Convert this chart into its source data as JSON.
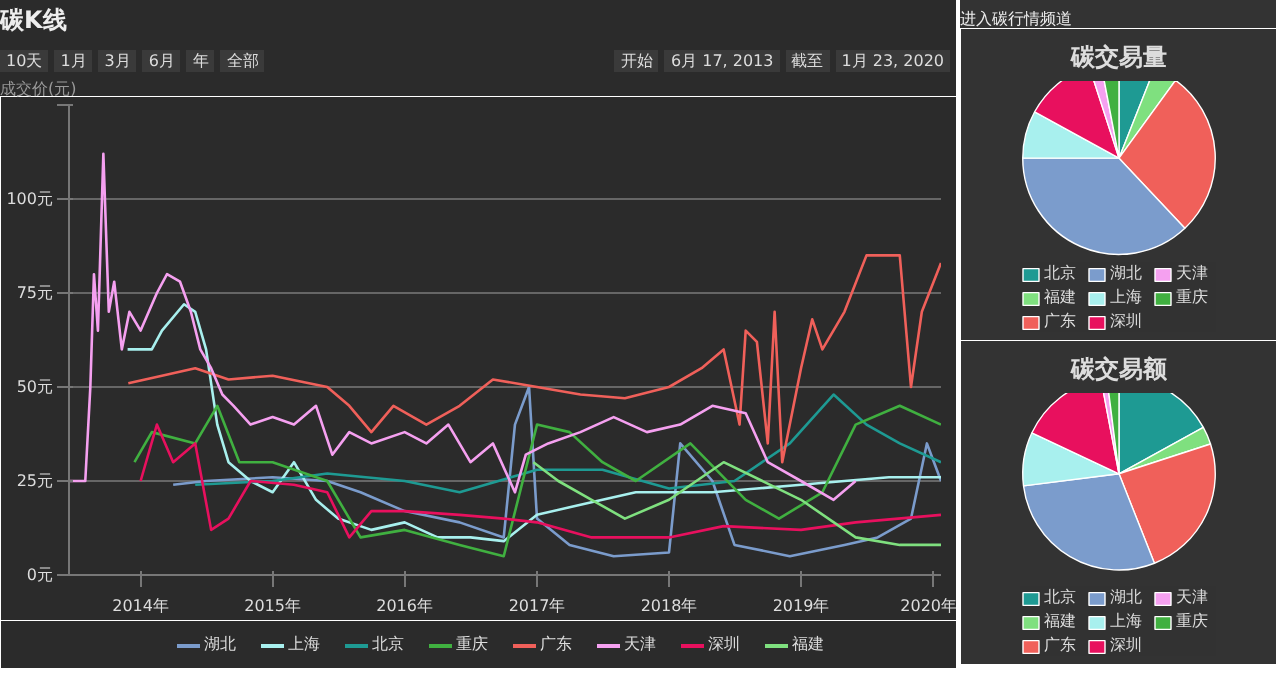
{
  "chart_data": [
    {
      "type": "line",
      "title": "碳K线",
      "ylabel": "成交价(元)",
      "annotations": [
        "10天",
        "1月",
        "3月",
        "6月",
        "年",
        "全部",
        "开始",
        "6月 17, 2013",
        "截至",
        "1月 23, 2020"
      ],
      "xlim": [
        "2013-06-17",
        "2020-01-23"
      ],
      "xticks": [
        {
          "value": "2014-01-01",
          "label": "2014年"
        },
        {
          "value": "2015-01-01",
          "label": "2015年"
        },
        {
          "value": "2016-01-01",
          "label": "2016年"
        },
        {
          "value": "2017-01-01",
          "label": "2017年"
        },
        {
          "value": "2018-01-01",
          "label": "2018年"
        },
        {
          "value": "2019-01-01",
          "label": "2019年"
        },
        {
          "value": "2020-01-01",
          "label": "2020年"
        }
      ],
      "ylim": [
        0,
        125
      ],
      "yticks": [
        {
          "value": 0,
          "label": "0元"
        },
        {
          "value": 25,
          "label": "25元"
        },
        {
          "value": 50,
          "label": "50元"
        },
        {
          "value": 75,
          "label": "75元"
        },
        {
          "value": 100,
          "label": "100元"
        },
        {
          "value": 125,
          "label": null
        }
      ],
      "grid": "y",
      "legend": "bottom",
      "marker": "none",
      "line_style": "solid",
      "series": [
        {
          "name": "湖北",
          "color": "#7b9ccc",
          "x": [
            "2014-04-01",
            "2014-07-01",
            "2015-01-01",
            "2015-06-01",
            "2015-09-01",
            "2016-01-01",
            "2016-06-01",
            "2016-10-01",
            "2016-11-01",
            "2016-12-10",
            "2017-01-01",
            "2017-04-01",
            "2017-08-01",
            "2018-01-01",
            "2018-02-01",
            "2018-05-01",
            "2018-07-01",
            "2018-12-01",
            "2019-05-01",
            "2019-08-01",
            "2019-11-01",
            "2019-12-15",
            "2020-01-23"
          ],
          "values": [
            24,
            25,
            26,
            25,
            22,
            17,
            14,
            10,
            40,
            50,
            15,
            8,
            5,
            6,
            35,
            25,
            8,
            5,
            8,
            10,
            15,
            35,
            25
          ]
        },
        {
          "name": "上海",
          "color": "#a8f0ee",
          "x": [
            "2013-11-26",
            "2014-02-01",
            "2014-03-01",
            "2014-05-01",
            "2014-06-01",
            "2014-07-01",
            "2014-08-01",
            "2014-09-01",
            "2014-11-01",
            "2015-01-01",
            "2015-03-01",
            "2015-05-01",
            "2015-07-01",
            "2015-10-01",
            "2016-01-01",
            "2016-04-01",
            "2016-07-01",
            "2016-10-01",
            "2017-01-01",
            "2017-04-01",
            "2017-07-01",
            "2017-10-01",
            "2018-01-01",
            "2018-05-01",
            "2018-09-01",
            "2019-01-01",
            "2019-05-01",
            "2019-09-01",
            "2020-01-23"
          ],
          "values": [
            60,
            60,
            65,
            72,
            70,
            60,
            40,
            30,
            25,
            22,
            30,
            20,
            15,
            12,
            14,
            10,
            10,
            9,
            16,
            18,
            20,
            22,
            22,
            22,
            23,
            24,
            25,
            26,
            26
          ]
        },
        {
          "name": "北京",
          "color": "#1e9a93",
          "x": [
            "2014-06-01",
            "2015-01-01",
            "2015-06-01",
            "2016-01-01",
            "2016-06-01",
            "2017-01-01",
            "2017-07-01",
            "2018-01-01",
            "2018-07-01",
            "2018-12-01",
            "2019-04-01",
            "2019-07-01",
            "2019-10-01",
            "2020-01-23"
          ],
          "values": [
            24,
            25,
            27,
            25,
            22,
            28,
            28,
            23,
            25,
            35,
            48,
            40,
            35,
            30
          ]
        },
        {
          "name": "重庆",
          "color": "#40b040",
          "x": [
            "2013-12-15",
            "2014-02-01",
            "2014-06-01",
            "2014-08-01",
            "2014-10-01",
            "2015-01-01",
            "2015-06-01",
            "2015-09-01",
            "2016-01-01",
            "2016-06-01",
            "2016-10-01",
            "2017-01-01",
            "2017-04-01",
            "2017-07-01",
            "2017-10-01",
            "2018-03-01",
            "2018-08-01",
            "2018-11-01",
            "2019-03-01",
            "2019-06-01",
            "2019-10-01",
            "2020-01-23"
          ],
          "values": [
            30,
            38,
            35,
            45,
            30,
            30,
            25,
            10,
            12,
            8,
            5,
            40,
            38,
            30,
            25,
            35,
            20,
            15,
            22,
            40,
            45,
            40
          ]
        },
        {
          "name": "广东",
          "color": "#f0605a",
          "x": [
            "2013-11-28",
            "2014-03-01",
            "2014-06-01",
            "2014-09-01",
            "2015-01-01",
            "2015-06-01",
            "2015-08-01",
            "2015-10-01",
            "2015-12-01",
            "2016-03-01",
            "2016-06-01",
            "2016-09-01",
            "2017-01-01",
            "2017-05-01",
            "2017-09-01",
            "2018-01-01",
            "2018-04-01",
            "2018-06-01",
            "2018-07-15",
            "2018-08-01",
            "2018-09-01",
            "2018-10-01",
            "2018-10-20",
            "2018-11-10",
            "2019-01-01",
            "2019-02-01",
            "2019-03-01",
            "2019-05-01",
            "2019-07-01",
            "2019-10-01",
            "2019-11-01",
            "2019-12-01",
            "2020-01-23"
          ],
          "values": [
            51,
            53,
            55,
            52,
            53,
            50,
            45,
            38,
            45,
            40,
            45,
            52,
            50,
            48,
            47,
            50,
            55,
            60,
            40,
            65,
            62,
            35,
            70,
            30,
            55,
            68,
            60,
            70,
            85,
            85,
            50,
            70,
            83
          ]
        },
        {
          "name": "天津",
          "color": "#f5a0f0",
          "x": [
            "2013-06-17",
            "2013-08-01",
            "2013-08-15",
            "2013-08-25",
            "2013-09-05",
            "2013-09-20",
            "2013-10-05",
            "2013-10-20",
            "2013-11-10",
            "2013-12-01",
            "2014-01-01",
            "2014-02-15",
            "2014-03-15",
            "2014-04-20",
            "2014-05-20",
            "2014-06-15",
            "2014-07-15",
            "2014-08-15",
            "2014-09-15",
            "2014-11-01",
            "2015-01-01",
            "2015-03-01",
            "2015-05-01",
            "2015-06-15",
            "2015-08-01",
            "2015-10-01",
            "2016-01-01",
            "2016-03-01",
            "2016-05-01",
            "2016-07-01",
            "2016-09-01",
            "2016-11-01",
            "2016-12-01",
            "2017-02-01",
            "2017-05-01",
            "2017-08-01",
            "2017-11-01",
            "2018-02-01",
            "2018-05-01",
            "2018-08-01",
            "2018-10-01",
            "2019-01-01",
            "2019-04-01",
            "2019-06-01"
          ],
          "values": [
            25,
            25,
            50,
            80,
            65,
            112,
            70,
            78,
            60,
            70,
            65,
            75,
            80,
            78,
            70,
            60,
            55,
            48,
            45,
            40,
            42,
            40,
            45,
            32,
            38,
            35,
            38,
            35,
            40,
            30,
            35,
            22,
            32,
            35,
            38,
            42,
            38,
            40,
            45,
            43,
            30,
            25,
            20,
            25
          ]
        },
        {
          "name": "深圳",
          "color": "#e8105e",
          "x": [
            "2014-01-01",
            "2014-02-15",
            "2014-04-01",
            "2014-06-01",
            "2014-07-15",
            "2014-09-01",
            "2014-11-01",
            "2015-03-01",
            "2015-06-01",
            "2015-08-01",
            "2015-10-01",
            "2016-01-01",
            "2016-06-01",
            "2016-10-01",
            "2017-01-01",
            "2017-06-01",
            "2018-01-01",
            "2018-06-01",
            "2019-01-01",
            "2019-06-01",
            "2020-01-23"
          ],
          "values": [
            25,
            40,
            30,
            35,
            12,
            15,
            25,
            24,
            22,
            10,
            17,
            17,
            16,
            15,
            14,
            10,
            10,
            13,
            12,
            14,
            16
          ]
        },
        {
          "name": "福建",
          "color": "#7fe07f",
          "x": [
            "2016-12-22",
            "2017-03-01",
            "2017-06-01",
            "2017-09-01",
            "2018-01-01",
            "2018-06-01",
            "2019-01-01",
            "2019-06-01",
            "2019-10-01",
            "2020-01-23"
          ],
          "values": [
            30,
            25,
            20,
            15,
            20,
            30,
            20,
            10,
            8,
            8
          ]
        }
      ]
    },
    {
      "type": "pie",
      "title": "碳交易量",
      "annotations": [
        "进入碳行情频道"
      ],
      "legend": "bottom",
      "categories": [
        "北京",
        "福建",
        "广东",
        "湖北",
        "上海",
        "深圳",
        "天津",
        "重庆"
      ],
      "values": [
        6,
        4,
        28,
        37,
        8,
        12,
        2,
        3
      ],
      "colors": [
        "#1e9a93",
        "#7fe07f",
        "#f0605a",
        "#7b9ccc",
        "#a8f0ee",
        "#e8105e",
        "#f5a0f0",
        "#40b040"
      ]
    },
    {
      "type": "pie",
      "title": "碳交易额",
      "legend": "bottom",
      "categories": [
        "北京",
        "福建",
        "广东",
        "湖北",
        "上海",
        "深圳",
        "天津",
        "重庆"
      ],
      "values": [
        17,
        3,
        24,
        29,
        9,
        15,
        1,
        2
      ],
      "colors": [
        "#1e9a93",
        "#7fe07f",
        "#f0605a",
        "#7b9ccc",
        "#a8f0ee",
        "#e8105e",
        "#f5a0f0",
        "#40b040"
      ]
    }
  ]
}
